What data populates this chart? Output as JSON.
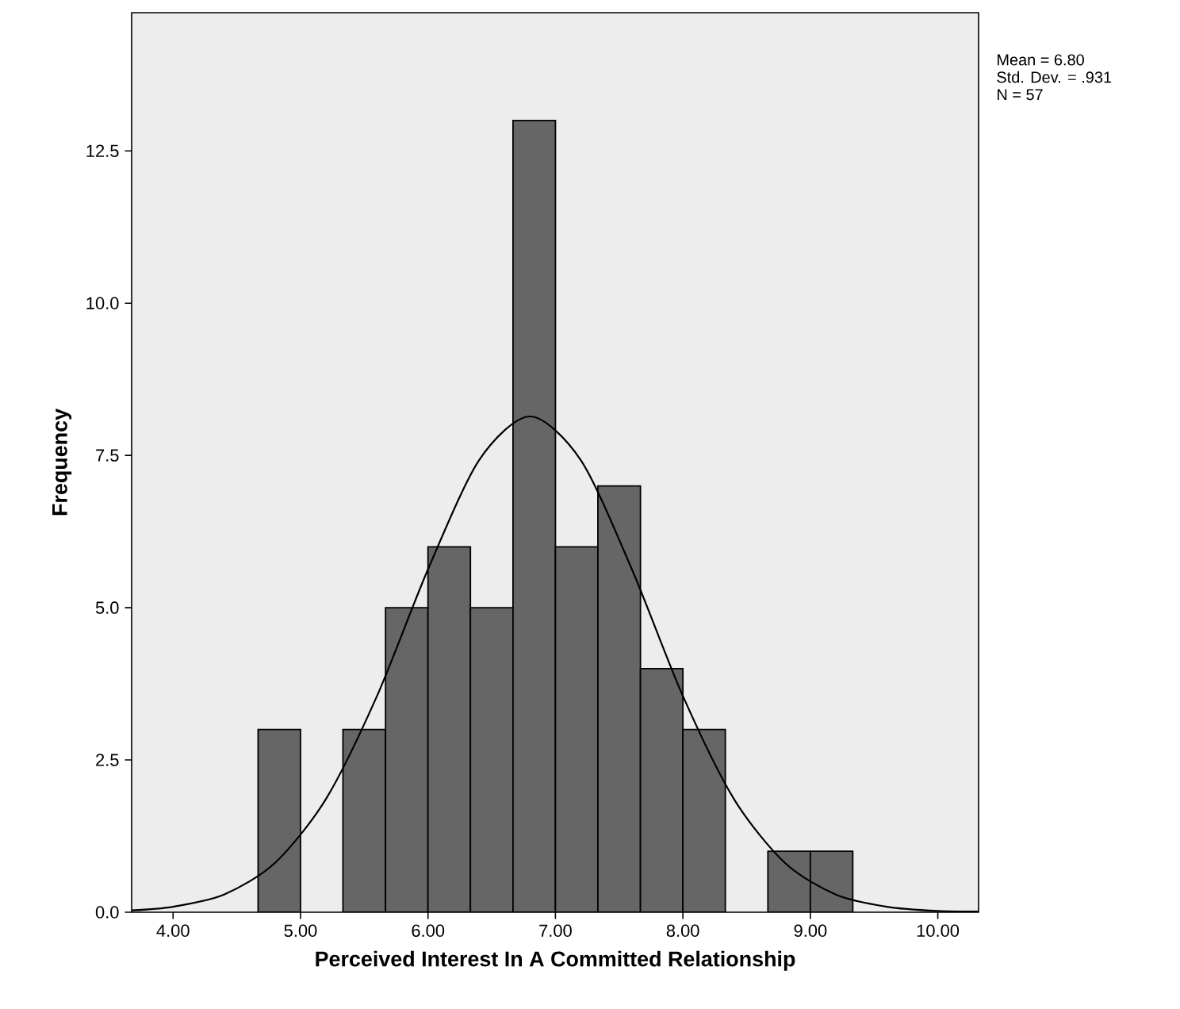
{
  "chart_data": {
    "type": "histogram",
    "xlabel": "Perceived Interest In A Committed Relationship",
    "ylabel": "Frequency",
    "annotations": [
      "Mean = 6.80",
      "Std. Dev. = .931",
      "N = 57"
    ],
    "xlim": [
      3.675,
      10.32
    ],
    "ylim": [
      0,
      14.77
    ],
    "xticks": [
      {
        "value": 4,
        "label": "4.00"
      },
      {
        "value": 5,
        "label": "5.00"
      },
      {
        "value": 6,
        "label": "6.00"
      },
      {
        "value": 7,
        "label": "7.00"
      },
      {
        "value": 8,
        "label": "8.00"
      },
      {
        "value": 9,
        "label": "9.00"
      },
      {
        "value": 10,
        "label": "10.00"
      }
    ],
    "yticks": [
      {
        "value": 0,
        "label": "0.0"
      },
      {
        "value": 2.5,
        "label": "2.5"
      },
      {
        "value": 5,
        "label": "5.0"
      },
      {
        "value": 7.5,
        "label": "7.5"
      },
      {
        "value": 10,
        "label": "10.0"
      },
      {
        "value": 12.5,
        "label": "12.5"
      }
    ],
    "series": [
      {
        "type": "histogram",
        "color": "#666666",
        "bins": [
          4.667,
          5,
          5.333,
          5.667,
          6,
          6.333,
          6.667,
          7,
          7.333,
          7.667,
          8,
          8.333,
          8.667,
          9,
          9.333
        ],
        "values": [
          3,
          0,
          3,
          5,
          6,
          5,
          13,
          6,
          7,
          4,
          3,
          0,
          1,
          1
        ]
      },
      {
        "type": "line",
        "color": "#000000",
        "x": [
          3.675,
          4.0,
          4.4,
          4.8,
          5.2,
          5.6,
          6.0,
          6.4,
          6.8,
          7.2,
          7.6,
          8.0,
          8.4,
          8.8,
          9.2,
          9.6,
          10.0,
          10.32
        ],
        "values": [
          0.03,
          0.09,
          0.29,
          0.81,
          1.86,
          3.55,
          5.63,
          7.42,
          8.14,
          7.42,
          5.63,
          3.55,
          1.86,
          0.81,
          0.29,
          0.09,
          0.02,
          0.01
        ]
      }
    ]
  }
}
